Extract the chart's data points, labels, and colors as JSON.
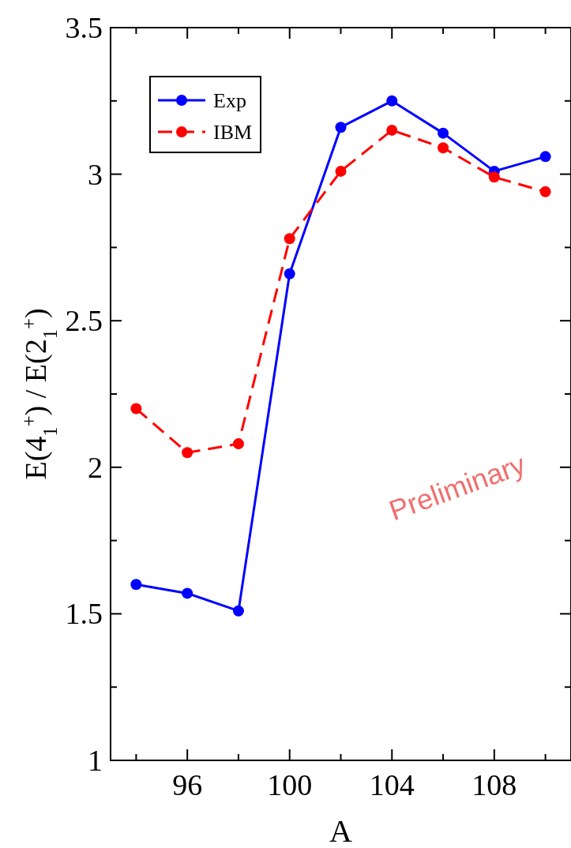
{
  "chart_data": {
    "type": "line",
    "xlabel": "A",
    "ylabel": "E(4$_{1}$$^{+}$) / E(2$_{1}$$^{+}$)",
    "x": [
      94,
      96,
      98,
      100,
      102,
      104,
      106,
      108,
      110
    ],
    "xlim": [
      93,
      111
    ],
    "ylim": [
      1,
      3.5
    ],
    "xticks": [
      {
        "value": 94,
        "label": null
      },
      96,
      {
        "value": 98,
        "label": null
      },
      100,
      {
        "value": 102,
        "label": null
      },
      104,
      {
        "value": 106,
        "label": null
      },
      108,
      {
        "value": 110,
        "label": null
      }
    ],
    "yticks": [
      1,
      {
        "value": 1.25,
        "label": null
      },
      1.5,
      {
        "value": 1.75,
        "label": null
      },
      2,
      {
        "value": 2.25,
        "label": null
      },
      2.5,
      {
        "value": 2.75,
        "label": null
      },
      3,
      {
        "value": 3.25,
        "label": null
      },
      3.5
    ],
    "series": [
      {
        "name": "Exp",
        "color": "#0000ff",
        "line_style": "solid",
        "values": [
          1.6,
          1.57,
          1.51,
          2.66,
          3.16,
          3.25,
          3.14,
          3.01,
          3.06
        ]
      },
      {
        "name": "IBM",
        "color": "#ff0000",
        "line_style": "dashed",
        "values": [
          2.2,
          2.05,
          2.08,
          2.78,
          3.01,
          3.15,
          3.09,
          2.99,
          2.94
        ]
      }
    ],
    "marker": "circle",
    "legend": "top left",
    "annotations": [
      "Preliminary"
    ]
  }
}
